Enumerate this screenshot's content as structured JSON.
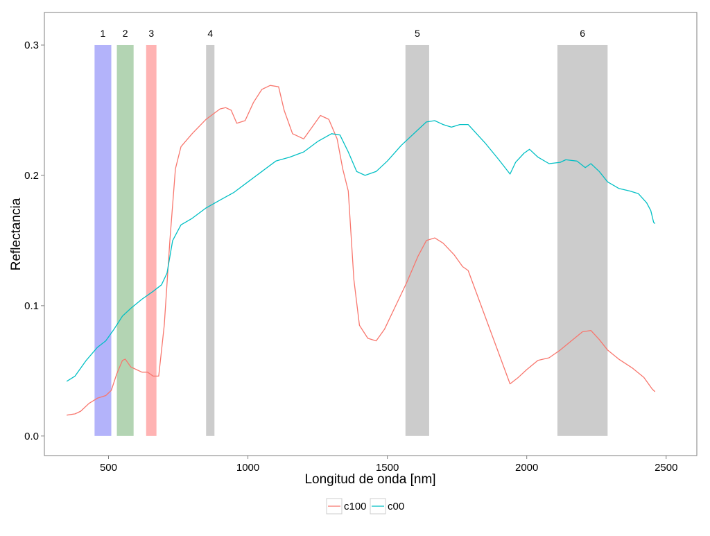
{
  "chart_data": {
    "type": "line",
    "title": "",
    "xlabel": "Longitud de onda [nm]",
    "ylabel": "Reflectancia",
    "xlim": [
      270,
      2610
    ],
    "ylim": [
      -0.015,
      0.325
    ],
    "x_ticks": [
      {
        "value": 500,
        "label": "500"
      },
      {
        "value": 1000,
        "label": "1000"
      },
      {
        "value": 1500,
        "label": "1500"
      },
      {
        "value": 2000,
        "label": "2000"
      },
      {
        "value": 2500,
        "label": "2500"
      }
    ],
    "y_ticks": [
      {
        "value": 0.0,
        "label": "0.0"
      },
      {
        "value": 0.1,
        "label": "0.1"
      },
      {
        "value": 0.2,
        "label": "0.2"
      },
      {
        "value": 0.3,
        "label": "0.3"
      }
    ],
    "grid": false,
    "legend_position": "bottom",
    "bands": [
      {
        "label": "1",
        "x_start": 450,
        "x_end": 510,
        "y_top": 0.3,
        "color": "#b3b3fa"
      },
      {
        "label": "2",
        "x_start": 530,
        "x_end": 590,
        "y_top": 0.3,
        "color": "#b3d4b3"
      },
      {
        "label": "3",
        "x_start": 635,
        "x_end": 672,
        "y_top": 0.3,
        "color": "#ffb3b3"
      },
      {
        "label": "4",
        "x_start": 850,
        "x_end": 880,
        "y_top": 0.3,
        "color": "#cccccc"
      },
      {
        "label": "5",
        "x_start": 1565,
        "x_end": 1650,
        "y_top": 0.3,
        "color": "#cccccc"
      },
      {
        "label": "6",
        "x_start": 2110,
        "x_end": 2290,
        "y_top": 0.3,
        "color": "#cccccc"
      }
    ],
    "series": [
      {
        "name": "c100",
        "color": "#f8766d",
        "points": [
          [
            350,
            0.016
          ],
          [
            380,
            0.017
          ],
          [
            400,
            0.019
          ],
          [
            430,
            0.025
          ],
          [
            460,
            0.029
          ],
          [
            490,
            0.031
          ],
          [
            510,
            0.035
          ],
          [
            530,
            0.048
          ],
          [
            550,
            0.058
          ],
          [
            560,
            0.059
          ],
          [
            580,
            0.053
          ],
          [
            600,
            0.051
          ],
          [
            620,
            0.049
          ],
          [
            640,
            0.049
          ],
          [
            660,
            0.046
          ],
          [
            680,
            0.046
          ],
          [
            700,
            0.085
          ],
          [
            720,
            0.15
          ],
          [
            740,
            0.205
          ],
          [
            760,
            0.222
          ],
          [
            800,
            0.232
          ],
          [
            850,
            0.243
          ],
          [
            900,
            0.251
          ],
          [
            920,
            0.252
          ],
          [
            940,
            0.25
          ],
          [
            960,
            0.24
          ],
          [
            990,
            0.242
          ],
          [
            1020,
            0.256
          ],
          [
            1050,
            0.266
          ],
          [
            1080,
            0.269
          ],
          [
            1110,
            0.268
          ],
          [
            1130,
            0.25
          ],
          [
            1160,
            0.232
          ],
          [
            1200,
            0.228
          ],
          [
            1230,
            0.237
          ],
          [
            1260,
            0.246
          ],
          [
            1290,
            0.243
          ],
          [
            1320,
            0.228
          ],
          [
            1340,
            0.205
          ],
          [
            1360,
            0.188
          ],
          [
            1380,
            0.12
          ],
          [
            1400,
            0.085
          ],
          [
            1430,
            0.075
          ],
          [
            1460,
            0.073
          ],
          [
            1490,
            0.082
          ],
          [
            1530,
            0.1
          ],
          [
            1570,
            0.118
          ],
          [
            1610,
            0.138
          ],
          [
            1640,
            0.15
          ],
          [
            1670,
            0.152
          ],
          [
            1700,
            0.148
          ],
          [
            1740,
            0.139
          ],
          [
            1770,
            0.13
          ],
          [
            1790,
            0.127
          ],
          [
            1940,
            0.04
          ],
          [
            1970,
            0.045
          ],
          [
            2000,
            0.051
          ],
          [
            2040,
            0.058
          ],
          [
            2080,
            0.06
          ],
          [
            2120,
            0.066
          ],
          [
            2160,
            0.073
          ],
          [
            2200,
            0.08
          ],
          [
            2230,
            0.081
          ],
          [
            2260,
            0.074
          ],
          [
            2290,
            0.066
          ],
          [
            2330,
            0.059
          ],
          [
            2380,
            0.052
          ],
          [
            2420,
            0.045
          ],
          [
            2450,
            0.036
          ],
          [
            2460,
            0.034
          ]
        ]
      },
      {
        "name": "c00",
        "color": "#00bfc4",
        "points": [
          [
            350,
            0.042
          ],
          [
            380,
            0.046
          ],
          [
            420,
            0.058
          ],
          [
            460,
            0.068
          ],
          [
            490,
            0.073
          ],
          [
            520,
            0.082
          ],
          [
            550,
            0.092
          ],
          [
            580,
            0.098
          ],
          [
            620,
            0.105
          ],
          [
            660,
            0.111
          ],
          [
            690,
            0.116
          ],
          [
            710,
            0.125
          ],
          [
            730,
            0.15
          ],
          [
            760,
            0.162
          ],
          [
            800,
            0.167
          ],
          [
            850,
            0.175
          ],
          [
            900,
            0.181
          ],
          [
            950,
            0.187
          ],
          [
            1000,
            0.195
          ],
          [
            1050,
            0.203
          ],
          [
            1100,
            0.211
          ],
          [
            1150,
            0.214
          ],
          [
            1200,
            0.218
          ],
          [
            1250,
            0.226
          ],
          [
            1300,
            0.232
          ],
          [
            1330,
            0.231
          ],
          [
            1360,
            0.218
          ],
          [
            1390,
            0.203
          ],
          [
            1420,
            0.2
          ],
          [
            1460,
            0.203
          ],
          [
            1500,
            0.211
          ],
          [
            1550,
            0.223
          ],
          [
            1600,
            0.233
          ],
          [
            1640,
            0.241
          ],
          [
            1670,
            0.242
          ],
          [
            1700,
            0.239
          ],
          [
            1730,
            0.237
          ],
          [
            1760,
            0.239
          ],
          [
            1790,
            0.239
          ],
          [
            1850,
            0.225
          ],
          [
            1900,
            0.212
          ],
          [
            1940,
            0.201
          ],
          [
            1960,
            0.21
          ],
          [
            1990,
            0.217
          ],
          [
            2010,
            0.22
          ],
          [
            2040,
            0.214
          ],
          [
            2080,
            0.209
          ],
          [
            2120,
            0.21
          ],
          [
            2140,
            0.212
          ],
          [
            2180,
            0.211
          ],
          [
            2210,
            0.206
          ],
          [
            2230,
            0.209
          ],
          [
            2260,
            0.203
          ],
          [
            2290,
            0.195
          ],
          [
            2330,
            0.19
          ],
          [
            2370,
            0.188
          ],
          [
            2400,
            0.186
          ],
          [
            2430,
            0.179
          ],
          [
            2445,
            0.173
          ],
          [
            2455,
            0.164
          ],
          [
            2460,
            0.163
          ]
        ]
      }
    ]
  }
}
